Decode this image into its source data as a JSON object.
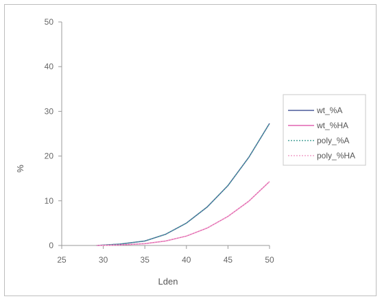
{
  "chart_data": {
    "type": "line",
    "xlabel": "Lden",
    "ylabel": "%",
    "xlim": [
      25,
      50
    ],
    "ylim": [
      0,
      50
    ],
    "x_ticks": [
      "25",
      "30",
      "35",
      "40",
      "45",
      "50"
    ],
    "y_ticks": [
      "0",
      "10",
      "20",
      "30",
      "40",
      "50"
    ],
    "grid": false,
    "legend": "right",
    "series": [
      {
        "name": "wt_%A",
        "color": "#4a5a9a",
        "style": "solid",
        "x": [
          29.2,
          32,
          35,
          37.5,
          40,
          42.5,
          45,
          47.5,
          50
        ],
        "y": [
          0,
          0.3,
          1.0,
          2.5,
          5.0,
          8.6,
          13.4,
          19.7,
          27.3
        ]
      },
      {
        "name": "wt_%HA",
        "color": "#e064b0",
        "style": "solid",
        "x": [
          29.2,
          32,
          35,
          37.5,
          40,
          42.5,
          45,
          47.5,
          50
        ],
        "y": [
          0,
          0.1,
          0.4,
          1.0,
          2.1,
          3.9,
          6.5,
          9.9,
          14.3
        ]
      },
      {
        "name": "poly_%A",
        "color": "#4aa39a",
        "style": "dotted",
        "x": [
          29.2,
          32,
          35,
          37.5,
          40,
          42.5,
          45,
          47.5,
          50
        ],
        "y": [
          0,
          0.3,
          1.0,
          2.5,
          5.0,
          8.6,
          13.4,
          19.7,
          27.3
        ]
      },
      {
        "name": "poly_%HA",
        "color": "#f0a0c8",
        "style": "dotted",
        "x": [
          29.2,
          32,
          35,
          37.5,
          40,
          42.5,
          45,
          47.5,
          50
        ],
        "y": [
          0,
          0.1,
          0.4,
          1.0,
          2.1,
          3.9,
          6.5,
          9.9,
          14.3
        ]
      }
    ]
  }
}
